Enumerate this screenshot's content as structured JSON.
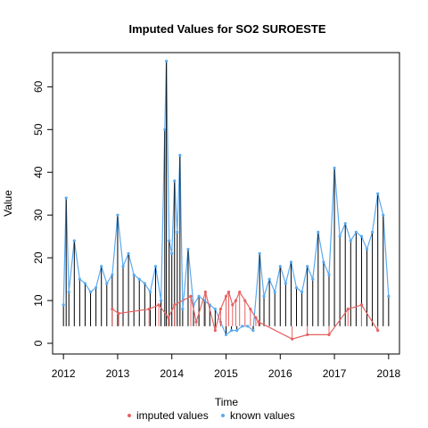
{
  "chart_data": {
    "type": "line",
    "title": "Imputed Values for  SO2 SUROESTE",
    "xlabel": "Time",
    "ylabel": "Value",
    "xlim": [
      2011.8,
      2018.2
    ],
    "ylim": [
      -2.5,
      68
    ],
    "x_ticks": [
      2012,
      2013,
      2014,
      2015,
      2016,
      2017,
      2018
    ],
    "x_tick_labels": [
      "2012",
      "2013",
      "2014",
      "2015",
      "2016",
      "2017",
      "2018"
    ],
    "y_ticks": [
      0,
      10,
      20,
      30,
      40,
      50,
      60
    ],
    "y_tick_labels": [
      "0",
      "10",
      "20",
      "30",
      "40",
      "50",
      "60"
    ],
    "grid": false,
    "legend_position": "bottom-center",
    "series": [
      {
        "name": "imputed values",
        "color": "#e66161",
        "x": [
          2012.9,
          2013.02,
          2013.58,
          2013.76,
          2013.94,
          2014.05,
          2014.35,
          2014.45,
          2014.62,
          2014.8,
          2014.9,
          2015.0,
          2015.05,
          2015.12,
          2015.18,
          2015.25,
          2015.35,
          2015.45,
          2015.55,
          2015.6,
          2016.22,
          2016.5,
          2016.9,
          2017.25,
          2017.5,
          2017.8
        ],
        "y": [
          8,
          7,
          8,
          9,
          6,
          9,
          11,
          5,
          12,
          3,
          8,
          11,
          12,
          9,
          10,
          12,
          10,
          8,
          6,
          5,
          1,
          2,
          2,
          8,
          9,
          3
        ]
      },
      {
        "name": "known values",
        "color": "#5aaaf0",
        "x": [
          2012.0,
          2012.05,
          2012.1,
          2012.2,
          2012.3,
          2012.4,
          2012.5,
          2012.6,
          2012.7,
          2012.8,
          2012.9,
          2013.0,
          2013.1,
          2013.2,
          2013.3,
          2013.4,
          2013.5,
          2013.6,
          2013.7,
          2013.8,
          2013.87,
          2013.9,
          2013.95,
          2014.0,
          2014.05,
          2014.1,
          2014.15,
          2014.2,
          2014.3,
          2014.4,
          2014.5,
          2014.6,
          2014.7,
          2014.8,
          2014.9,
          2015.0,
          2015.1,
          2015.2,
          2015.3,
          2015.4,
          2015.5,
          2015.62,
          2015.7,
          2015.8,
          2015.9,
          2016.0,
          2016.1,
          2016.2,
          2016.3,
          2016.4,
          2016.5,
          2016.6,
          2016.7,
          2016.8,
          2016.9,
          2017.0,
          2017.1,
          2017.2,
          2017.3,
          2017.4,
          2017.5,
          2017.6,
          2017.7,
          2017.8,
          2017.9,
          2018.0
        ],
        "y": [
          9,
          34,
          12,
          24,
          15,
          14,
          12,
          13,
          18,
          14,
          16,
          30,
          18,
          21,
          16,
          15,
          14,
          12,
          18,
          10,
          50,
          66,
          24,
          21,
          38,
          26,
          44,
          8,
          22,
          9,
          11,
          10,
          9,
          8,
          5,
          2,
          3,
          3,
          4,
          4,
          3,
          21,
          11,
          15,
          12,
          18,
          14,
          19,
          13,
          12,
          18,
          15,
          26,
          19,
          16,
          41,
          25,
          28,
          24,
          26,
          25,
          22,
          26,
          35,
          30,
          11
        ]
      }
    ]
  }
}
